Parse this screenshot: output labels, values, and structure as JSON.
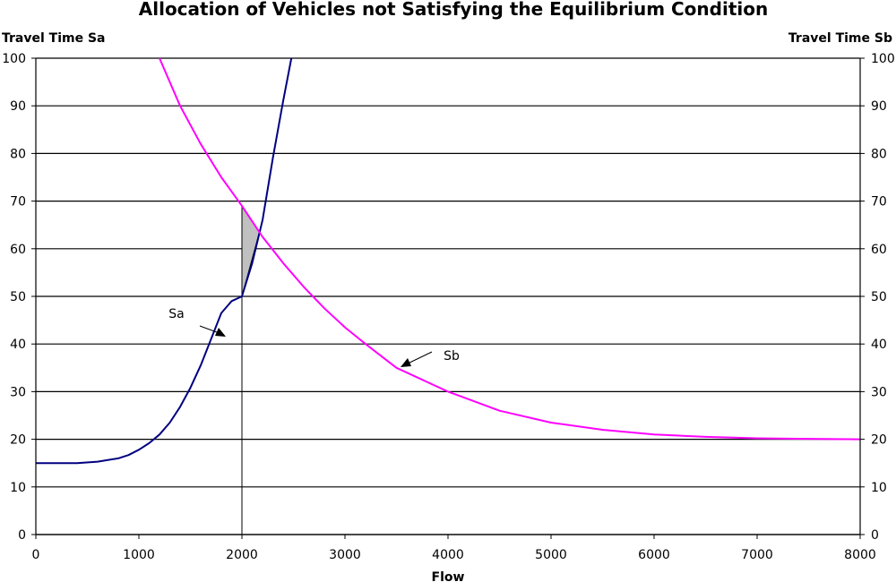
{
  "chart_data": {
    "type": "line",
    "title": "Allocation of Vehicles not Satisfying the Equilibrium Condition",
    "xlabel": "Flow",
    "ylabel_left": "Travel Time Sa",
    "ylabel_right": "Travel Time Sb",
    "xlim": [
      0,
      8000
    ],
    "ylim": [
      0,
      100
    ],
    "x_ticks": [
      "0",
      "1000",
      "2000",
      "3000",
      "4000",
      "5000",
      "6000",
      "7000",
      "8000"
    ],
    "y_ticks": [
      "0",
      "10",
      "20",
      "30",
      "40",
      "50",
      "60",
      "70",
      "80",
      "90",
      "100"
    ],
    "grid": "horizontal",
    "colors": {
      "Sa": "#000080",
      "Sb": "#ff00ff",
      "shade": "#c0c0c0"
    },
    "series": [
      {
        "name": "Sa",
        "x": [
          0,
          200,
          400,
          600,
          800,
          900,
          1000,
          1100,
          1200,
          1300,
          1400,
          1500,
          1600,
          1700,
          1800,
          1900,
          2000,
          2100,
          2200,
          2300,
          2400,
          2480
        ],
        "y": [
          15,
          15,
          15,
          15.3,
          16,
          16.7,
          17.8,
          19.2,
          21,
          23.5,
          26.8,
          30.8,
          35.5,
          41,
          47.5,
          55,
          50,
          58,
          70,
          82,
          94,
          100
        ]
      },
      {
        "name": "Sb",
        "x": [
          1200,
          1400,
          1600,
          1800,
          2000,
          2200,
          2400,
          2600,
          2800,
          3000,
          3200,
          3500,
          4000,
          4500,
          5000,
          5500,
          6000,
          6500,
          7000,
          7500,
          8000
        ],
        "y": [
          100,
          90,
          82,
          75,
          69,
          62.5,
          57,
          52,
          47.5,
          43.5,
          40,
          35,
          30,
          26,
          23.5,
          22,
          21,
          20.5,
          20.2,
          20.1,
          20
        ]
      }
    ],
    "shaded_region": {
      "x": [
        2000,
        2000,
        2170
      ],
      "y": [
        69,
        50,
        63.5
      ]
    },
    "vertical_line_x": 2000,
    "annotations": [
      {
        "text": "Sa",
        "x": 1950,
        "y": 41
      },
      {
        "text": "Sb",
        "x": 3550,
        "y": 35
      }
    ]
  }
}
